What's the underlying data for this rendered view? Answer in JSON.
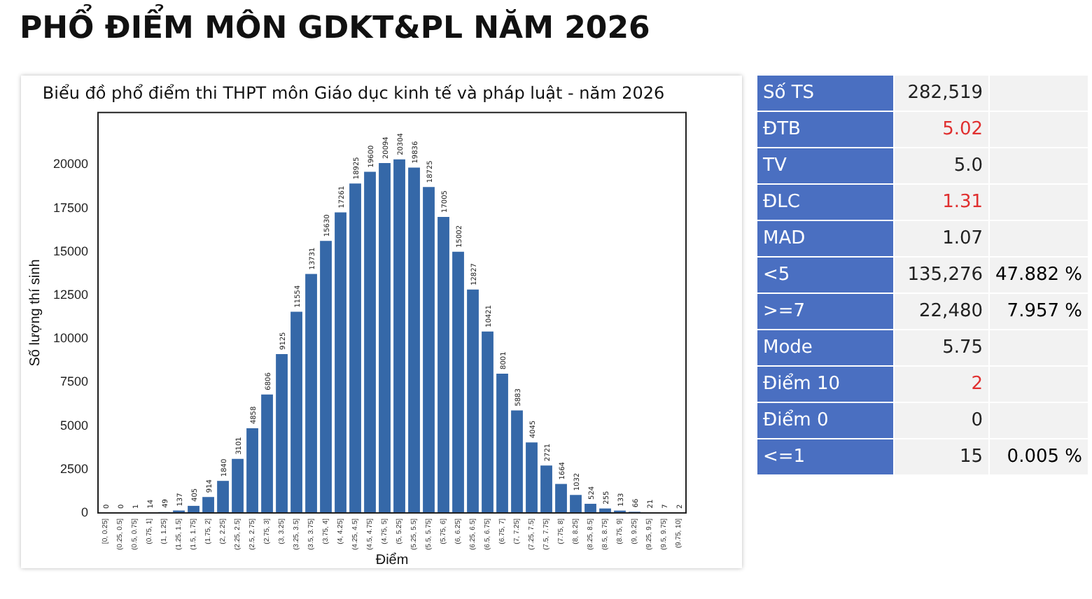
{
  "chart_data": [
    {
      "type": "bar",
      "title": "PHỔ ĐIỂM MÔN GDKT&PL NĂM 2026",
      "subtitle": "Biểu đồ phổ điểm thi THPT môn Giáo dục kinh tế và pháp luật - năm 2026",
      "xlabel": "Điểm",
      "ylabel": "Số lượng thí sinh",
      "categories": [
        "[0, 0.25]",
        "(0.25, 0.5]",
        "(0.5, 0.75]",
        "(0.75, 1]",
        "(1, 1.25]",
        "(1.25, 1.5]",
        "(1.5, 1.75]",
        "(1.75, 2]",
        "(2, 2.25]",
        "(2.25, 2.5]",
        "(2.5, 2.75]",
        "(2.75, 3]",
        "(3, 3.25]",
        "(3.25, 3.5]",
        "(3.5, 3.75]",
        "(3.75, 4]",
        "(4, 4.25]",
        "(4.25, 4.5]",
        "(4.5, 4.75]",
        "(4.75, 5]",
        "(5, 5.25]",
        "(5.25, 5.5]",
        "(5.5, 5.75]",
        "(5.75, 6]",
        "(6, 6.25]",
        "(6.25, 6.5]",
        "(6.5, 6.75]",
        "(6.75, 7]",
        "(7, 7.25]",
        "(7.25, 7.5]",
        "(7.5, 7.75]",
        "(7.75, 8]",
        "(8, 8.25]",
        "(8.25, 8.5]",
        "(8.5, 8.75]",
        "(8.75, 9]",
        "(9, 9.25]",
        "(9.25, 9.5]",
        "(9.5, 9.75]",
        "(9.75, 10]"
      ],
      "values": [
        0,
        0,
        1,
        14,
        49,
        137,
        405,
        914,
        1840,
        3101,
        4858,
        6806,
        9125,
        11554,
        13731,
        15630,
        17261,
        18925,
        19600,
        20094,
        20304,
        19836,
        18725,
        17005,
        15002,
        12827,
        10421,
        8001,
        5883,
        4045,
        2721,
        1664,
        1032,
        524,
        255,
        133,
        66,
        21,
        7,
        2
      ],
      "color": "#3568a8",
      "ylim": [
        0,
        23000
      ],
      "yticks": [
        0,
        2500,
        5000,
        7500,
        10000,
        12500,
        15000,
        17500,
        20000
      ],
      "grid": false,
      "legend": false,
      "data_labels": true
    },
    {
      "type": "other",
      "y_categories": [
        "Số TS",
        "ĐTB",
        "TV",
        "ĐLC",
        "MAD",
        "<5",
        ">=7",
        "Mode",
        "Điểm 10",
        "Điểm 0",
        "<=1"
      ],
      "cell_labels": [
        [
          "282,519",
          null
        ],
        [
          "5.02",
          null
        ],
        [
          "5.0",
          null
        ],
        [
          "1.31",
          null
        ],
        [
          "1.07",
          null
        ],
        [
          "135,276",
          "47.882 %"
        ],
        [
          "22,480",
          "7.957 %"
        ],
        [
          "5.75",
          null
        ],
        [
          "2",
          null
        ],
        [
          "0",
          null
        ],
        [
          "15",
          "0.005 %"
        ]
      ],
      "colors": [
        "#222222",
        "#e03030",
        "#222222",
        "#e03030",
        "#222222",
        "#222222",
        "#222222",
        "#222222",
        "#e03030",
        "#222222",
        "#222222"
      ]
    }
  ]
}
